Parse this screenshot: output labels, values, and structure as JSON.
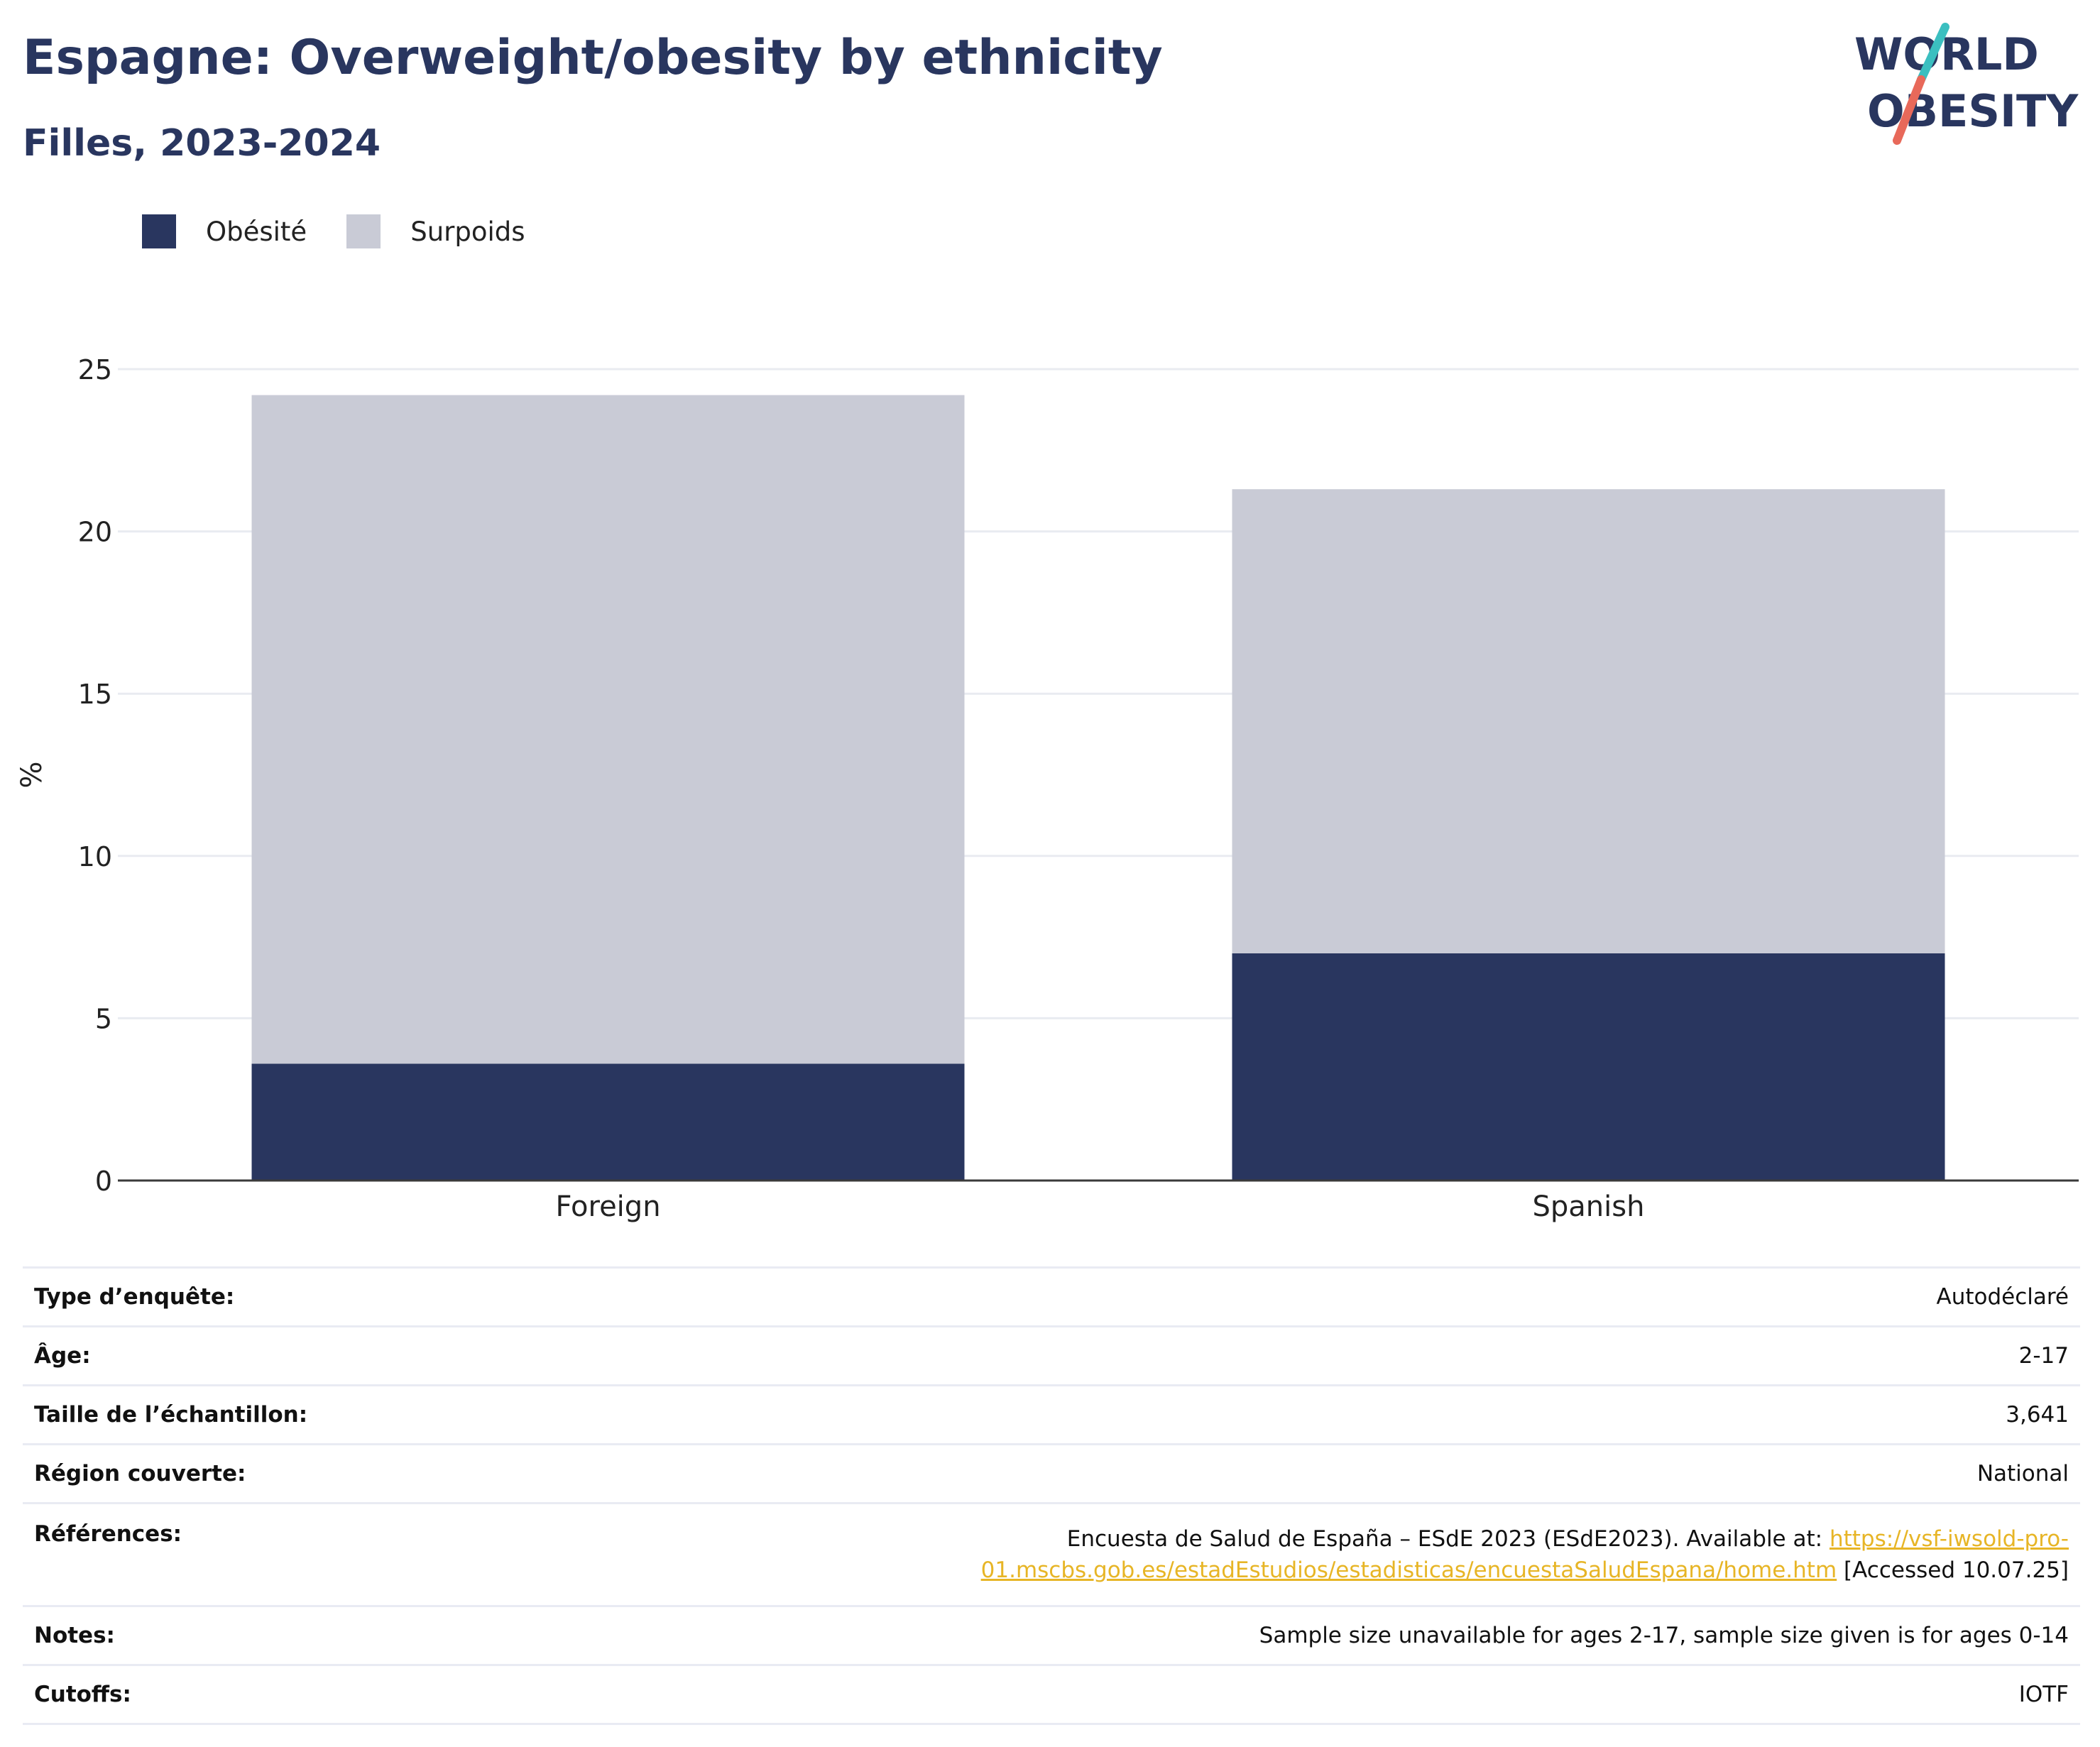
{
  "header": {
    "title": "Espagne: Overweight/obesity by ethnicity",
    "subtitle": "Filles, 2023-2024"
  },
  "logo": {
    "line1": "WORLD",
    "line2": "OBESITY"
  },
  "colors": {
    "obesity": "#29365f",
    "overweight": "#c9cbd6",
    "title": "#29365f",
    "link": "#e7b526",
    "logo_teal": "#3bbfc0",
    "logo_coral": "#e8695a"
  },
  "legend": [
    {
      "label": "Obésité",
      "color": "#29365f"
    },
    {
      "label": "Surpoids",
      "color": "#c9cbd6"
    }
  ],
  "chart_data": {
    "type": "bar",
    "stacked": true,
    "categories": [
      "Foreign",
      "Spanish"
    ],
    "series": [
      {
        "name": "Obésité",
        "values": [
          3.6,
          7.0
        ]
      },
      {
        "name": "Surpoids",
        "values": [
          20.6,
          14.3
        ]
      }
    ],
    "ylabel": "%",
    "ylim": [
      0,
      25
    ],
    "yticks": [
      0,
      5,
      10,
      15,
      20,
      25
    ],
    "grid": true,
    "legend_position": "top-left"
  },
  "meta": {
    "survey_type": {
      "label": "Type d’enquête:",
      "value": "Autodéclaré"
    },
    "age": {
      "label": "Âge:",
      "value": "2-17"
    },
    "sample_size": {
      "label": "Taille de l’échantillon:",
      "value": "3,641"
    },
    "region": {
      "label": "Région couverte:",
      "value": "National"
    },
    "references": {
      "label": "Références:",
      "text_before": "Encuesta de Salud de España – ESdE 2023 (ESdE2023). Available at: ",
      "link_line1": "https://vsf-iwsold-pro-",
      "link_line2": "01.mscbs.gob.es/estadEstudios/estadisticas/encuestaSaludEspana/home.htm",
      "text_after": " [Accessed 10.07.25]"
    },
    "notes": {
      "label": "Notes:",
      "value": "Sample size unavailable for ages 2-17, sample size given is for ages 0-14"
    },
    "cutoffs": {
      "label": "Cutoffs:",
      "value": "IOTF"
    }
  }
}
